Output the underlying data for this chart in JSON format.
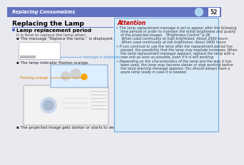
{
  "bg_color": "#e8eaf0",
  "header_color": "#6272c0",
  "header_text": "Replacing Consumables",
  "header_text_color": "#ffffff",
  "header_fontsize": 4.8,
  "page_num": "52",
  "page_num_color": "#333333",
  "title": "Replacing the Lamp",
  "title_color": "#000000",
  "title_fontsize": 6.5,
  "section_title": "Lamp replacement period",
  "section_title_color": "#000000",
  "section_title_fontsize": 5.2,
  "section_sq_color": "#5c6bc0",
  "sub_text": "It is time to replace the lamp when:",
  "sub_text_color": "#444444",
  "sub_text_fontsize": 4.0,
  "bullet1": "The message “Replace the lamp.” is displayed.",
  "bullet2": "The lamp indicator flashes orange.",
  "bullet3": "The projected image gets darker or starts to deteriorate.",
  "bullet_color": "#222222",
  "bullet_fontsize": 4.0,
  "msg_label": "A message is displayed.",
  "msg_label_color": "#4a90d9",
  "msg_label_fontsize": 3.5,
  "flash_label": "Flashing orange",
  "flash_label_color": "#e07800",
  "flash_label_fontsize": 3.5,
  "attention_title": "Attention",
  "attention_title_color": "#cc0000",
  "attention_title_fontsize": 5.5,
  "attention_box_bg": "#d6eaf8",
  "attention_box_border": "#6aabe0",
  "attention_bullet1_lines": [
    "The lamp replacement message is set to appear after the following",
    "time periods in order to maintain the initial brightness and quality",
    "of the projected images.  “Brightness Control” p.28",
    "·When used continually at high brightness: About 2900 hours",
    "·When used continually at low brightness: About 3900 hours"
  ],
  "attention_bullet2_lines": [
    "If you continue to use the lamp after the replacement period has",
    "passed, the possibility that the lamp may explode increases. When",
    "the lamp replacement message appears, replace the lamp with a",
    "new one as soon as possible, even if it is still working."
  ],
  "attention_bullet3_lines": [
    "Depending on the characteristics of the lamp and the way it has",
    "been used, the lamp may become darker or stop working before",
    "the lamp warning message appears. You should always have a",
    "spare lamp ready in case it is needed."
  ],
  "attention_fontsize": 3.5,
  "attention_text_color": "#333333",
  "divider_color": "#6272c0",
  "msg_box_color": "#ffffff",
  "msg_box_border": "#aaaaaa",
  "projector_body_color": "#f2f2f2",
  "projector_border_color": "#999999",
  "projector_panel_color": "#ddeeff",
  "projector_panel_border": "#88aacc"
}
